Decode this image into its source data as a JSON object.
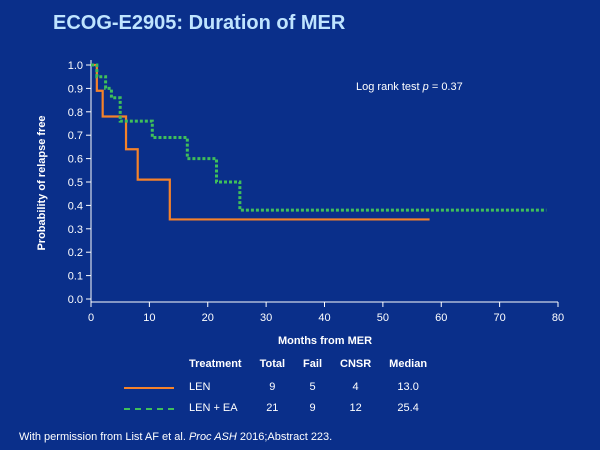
{
  "title": "ECOG-E2905: Duration of MER",
  "annotation": {
    "prefix": "Log rank test ",
    "p_symbol": "p",
    "suffix": " = 0.37"
  },
  "citation": {
    "prefix": "With permission from List AF et al. ",
    "journal": "Proc ASH",
    "suffix": " 2016;Abstract 223."
  },
  "colors": {
    "background": "#0a2f8a",
    "title": "#bfe4ff",
    "len": "#f5822a",
    "len_ea": "#3fbf5a",
    "axis": "#ffffff"
  },
  "legend": {
    "headers": {
      "treatment": "Treatment",
      "total": "Total",
      "fail": "Fail",
      "cnsr": "CNSR",
      "median": "Median"
    },
    "rows": [
      {
        "name": "LEN",
        "total": "9",
        "fail": "5",
        "cnsr": "4",
        "median": "13.0",
        "style": "solid"
      },
      {
        "name": "LEN + EA",
        "total": "21",
        "fail": "9",
        "cnsr": "12",
        "median": "25.4",
        "style": "dashed"
      }
    ]
  },
  "chart_data": {
    "type": "line",
    "subtype": "kaplan-meier-step",
    "title": "ECOG-E2905: Duration of MER",
    "xlabel": "Months from MER",
    "ylabel": "Probability of relapse free",
    "xlim": [
      0,
      80
    ],
    "ylim": [
      0,
      1.0
    ],
    "xticks": [
      "0",
      "10",
      "20",
      "30",
      "40",
      "50",
      "60",
      "70",
      "80"
    ],
    "yticks": [
      "0.0",
      "0.1",
      "0.2",
      "0.3",
      "0.4",
      "0.5",
      "0.6",
      "0.7",
      "0.8",
      "0.9",
      "1.0"
    ],
    "series": [
      {
        "name": "LEN",
        "style": "solid",
        "color": "#f5822a",
        "x": [
          0,
          0.5,
          1,
          2,
          4,
          6,
          8,
          13.5,
          58
        ],
        "y": [
          1.0,
          1.0,
          0.89,
          0.78,
          0.78,
          0.64,
          0.51,
          0.34,
          0.34
        ]
      },
      {
        "name": "LEN + EA",
        "style": "dashed",
        "color": "#3fbf5a",
        "x": [
          0,
          1,
          2.5,
          3.5,
          5,
          10.5,
          16.5,
          21.5,
          25.5,
          78
        ],
        "y": [
          1.0,
          0.95,
          0.9,
          0.86,
          0.76,
          0.69,
          0.6,
          0.5,
          0.38,
          0.38
        ]
      }
    ]
  }
}
